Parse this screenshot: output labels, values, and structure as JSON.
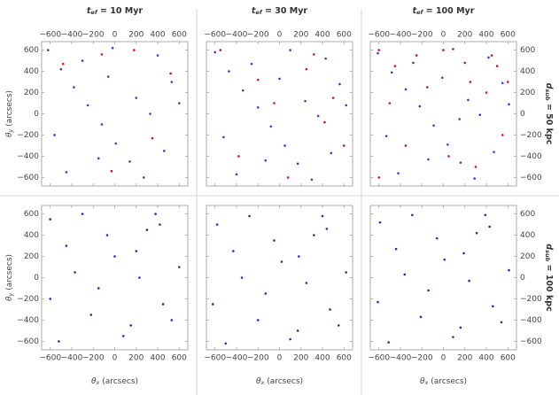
{
  "chart_data": {
    "type": "scatter",
    "xlim": [
      -680,
      680
    ],
    "ylim": [
      -680,
      680
    ],
    "xticks": [
      {
        "value": -600,
        "label": "−600"
      },
      {
        "value": -400,
        "label": "−400"
      },
      {
        "value": -200,
        "label": "−200"
      },
      0,
      200,
      400,
      600
    ],
    "yticks": [
      {
        "value": -600,
        "label": "−600"
      },
      {
        "value": -400,
        "label": "−400"
      },
      {
        "value": -200,
        "label": "−200"
      },
      0,
      200,
      400,
      600
    ],
    "x_label": {
      "symbol": "θ",
      "subscript": "x",
      "text": " (arcsecs)"
    },
    "y_label": {
      "symbol": "θ",
      "subscript": "y",
      "text": " (arcsecs)"
    },
    "columns": [
      {
        "symbol": "t",
        "subscript": "ef",
        "text": " = 10 Myr"
      },
      {
        "symbol": "t",
        "subscript": "ef",
        "text": " = 30 Myr"
      },
      {
        "symbol": "t",
        "subscript": "ef",
        "text": " = 100 Myr"
      }
    ],
    "rows": [
      {
        "symbol": "d",
        "subscript": "sub",
        "text": " = 50 kpc"
      },
      {
        "symbol": "d",
        "subscript": "sub",
        "text": " = 100 kpc"
      }
    ],
    "panels": [
      {
        "series": [
          {
            "color": "#3a3ad8",
            "x": [
              -620,
              -500,
              -380,
              -250,
              -120,
              10,
              140,
              270,
              400,
              530,
              -560,
              -300,
              -60,
              200,
              460,
              -450,
              -150,
              330,
              600,
              -20
            ],
            "y": [
              600,
              420,
              250,
              80,
              -100,
              -280,
              -450,
              -600,
              550,
              300,
              -200,
              500,
              350,
              150,
              -350,
              -550,
              -420,
              0,
              100,
              620
            ]
          },
          {
            "color": "#d0103a",
            "x": [
              -120,
              180,
              -480,
              350,
              520,
              -30
            ],
            "y": [
              560,
              600,
              470,
              -230,
              380,
              -540
            ]
          }
        ]
      },
      {
        "series": [
          {
            "color": "#3a3ad8",
            "x": [
              -600,
              -470,
              -340,
              -200,
              -80,
              50,
              170,
              300,
              430,
              560,
              -520,
              -260,
              0,
              240,
              480,
              -400,
              -130,
              360,
              620,
              100
            ],
            "y": [
              580,
              400,
              220,
              60,
              -120,
              -300,
              -470,
              -620,
              520,
              280,
              -220,
              470,
              330,
              120,
              -370,
              -570,
              -440,
              -20,
              80,
              600
            ]
          },
          {
            "color": "#d0103a",
            "x": [
              -550,
              -200,
              250,
              500,
              420,
              -380,
              80,
              600,
              -50,
              320
            ],
            "y": [
              600,
              320,
              420,
              150,
              -80,
              -400,
              -600,
              -300,
              100,
              560
            ]
          }
        ]
      },
      {
        "series": [
          {
            "color": "#3a3ad8",
            "x": [
              -610,
              -480,
              -350,
              -220,
              -90,
              40,
              160,
              290,
              420,
              550,
              -530,
              -280,
              -10,
              230,
              470,
              -420,
              -140,
              340,
              610,
              90
            ],
            "y": [
              570,
              390,
              230,
              70,
              -110,
              -290,
              -460,
              -610,
              530,
              290,
              -210,
              480,
              340,
              130,
              -360,
              -560,
              -430,
              -10,
              90,
              610
            ]
          },
          {
            "color": "#d0103a",
            "x": [
              -600,
              -450,
              -250,
              0,
              200,
              450,
              600,
              -500,
              -150,
              150,
              400,
              550,
              -350,
              50,
              300,
              -600,
              250,
              500
            ],
            "y": [
              600,
              450,
              550,
              600,
              480,
              550,
              300,
              100,
              250,
              -50,
              200,
              -200,
              -300,
              -400,
              -500,
              -600,
              300,
              450
            ]
          }
        ]
      },
      {
        "series": [
          {
            "color": "#2a2ab0",
            "x": [
              -600,
              -450,
              -300,
              -150,
              0,
              150,
              300,
              450,
              600,
              -520,
              -370,
              -220,
              -70,
              80,
              230,
              380,
              530,
              -600,
              200,
              420
            ],
            "y": [
              550,
              300,
              600,
              -100,
              200,
              -450,
              450,
              -250,
              100,
              -600,
              50,
              -350,
              400,
              -550,
              0,
              600,
              -400,
              -200,
              250,
              500
            ]
          }
        ]
      },
      {
        "series": [
          {
            "color": "#2a2ab0",
            "x": [
              -580,
              -430,
              -280,
              -130,
              20,
              170,
              320,
              470,
              620,
              -500,
              -350,
              -200,
              -50,
              100,
              250,
              400,
              550,
              -620,
              180,
              440
            ],
            "y": [
              500,
              250,
              580,
              -150,
              150,
              -500,
              400,
              -300,
              50,
              -620,
              0,
              -400,
              350,
              -580,
              -50,
              580,
              -450,
              -250,
              200,
              460
            ]
          }
        ]
      },
      {
        "series": [
          {
            "color": "#2a2ab0",
            "x": [
              -590,
              -440,
              -290,
              -140,
              10,
              160,
              310,
              460,
              610,
              -510,
              -360,
              -210,
              -60,
              90,
              240,
              390,
              540,
              -610,
              190,
              430
            ],
            "y": [
              520,
              270,
              590,
              -120,
              170,
              -470,
              420,
              -270,
              70,
              -610,
              30,
              -370,
              370,
              -560,
              -30,
              590,
              -420,
              -230,
              230,
              480
            ]
          }
        ]
      }
    ]
  }
}
